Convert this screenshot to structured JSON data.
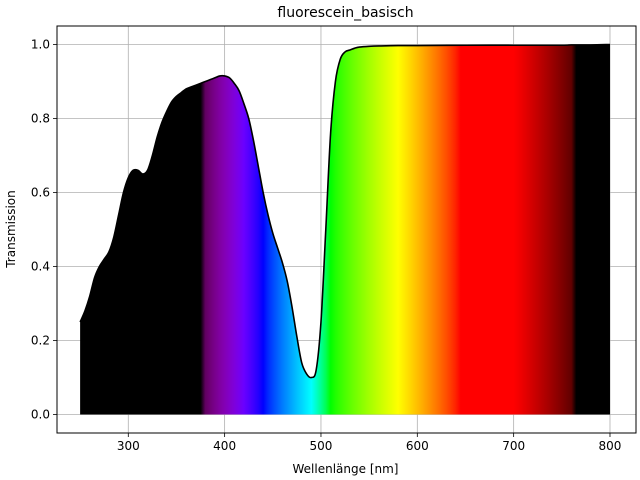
{
  "chart_data": {
    "type": "area",
    "title": "fluorescein_basisch",
    "xlabel": "Wellenlänge [nm]",
    "ylabel": "Transmission",
    "xlim": [
      226,
      827
    ],
    "ylim": [
      -0.05,
      1.05
    ],
    "xticks": [
      300,
      400,
      500,
      600,
      700,
      800
    ],
    "yticks": [
      0.0,
      0.2,
      0.4,
      0.6,
      0.8,
      1.0
    ],
    "grid": true,
    "fill": "visible spectrum colors under curve",
    "line_color": "#000000",
    "series": [
      {
        "x": [
          250,
          255,
          260,
          265,
          270,
          275,
          280,
          285,
          290,
          295,
          300,
          305,
          310,
          315,
          320,
          325,
          330,
          335,
          340,
          345,
          350,
          355,
          360,
          365,
          370,
          375,
          380,
          385,
          390,
          395,
          400,
          405,
          410,
          415,
          420,
          425,
          430,
          435,
          440,
          445,
          450,
          455,
          460,
          465,
          470,
          475,
          480,
          485,
          490,
          495,
          500,
          505,
          510,
          515,
          520,
          525,
          530,
          535,
          540,
          550,
          560,
          580,
          600,
          650,
          700,
          750,
          760,
          780,
          800
        ],
        "y": [
          0.25,
          0.28,
          0.32,
          0.37,
          0.4,
          0.42,
          0.44,
          0.48,
          0.54,
          0.6,
          0.64,
          0.66,
          0.66,
          0.65,
          0.66,
          0.7,
          0.75,
          0.79,
          0.82,
          0.845,
          0.86,
          0.87,
          0.88,
          0.885,
          0.89,
          0.895,
          0.9,
          0.905,
          0.91,
          0.915,
          0.915,
          0.91,
          0.895,
          0.875,
          0.84,
          0.8,
          0.74,
          0.67,
          0.6,
          0.54,
          0.49,
          0.45,
          0.41,
          0.36,
          0.29,
          0.21,
          0.14,
          0.11,
          0.1,
          0.12,
          0.25,
          0.5,
          0.76,
          0.9,
          0.96,
          0.98,
          0.985,
          0.99,
          0.993,
          0.995,
          0.996,
          0.997,
          0.997,
          0.998,
          0.998,
          0.998,
          0.999,
          0.999,
          1.0
        ]
      }
    ]
  }
}
